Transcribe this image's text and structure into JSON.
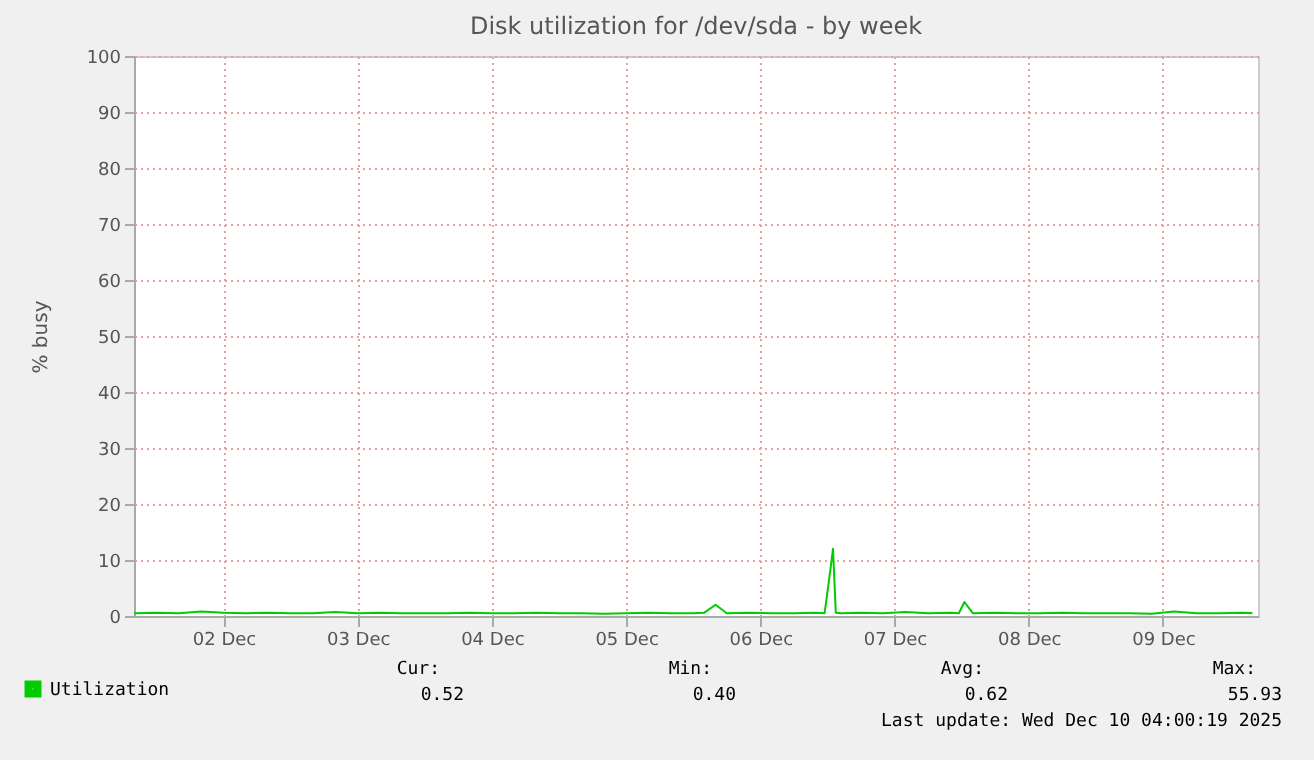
{
  "chart_data": {
    "type": "line",
    "title": "Disk utilization for /dev/sda - by week",
    "ylabel": "% busy",
    "x": [
      "2025-12-01T20:00",
      "2025-12-02T00:00",
      "2025-12-02T04:00",
      "2025-12-02T08:00",
      "2025-12-02T12:00",
      "2025-12-02T16:00",
      "2025-12-02T20:00",
      "2025-12-03T00:00",
      "2025-12-03T04:00",
      "2025-12-03T08:00",
      "2025-12-03T12:00",
      "2025-12-03T16:00",
      "2025-12-03T20:00",
      "2025-12-04T00:00",
      "2025-12-04T04:00",
      "2025-12-04T08:00",
      "2025-12-04T12:00",
      "2025-12-04T16:00",
      "2025-12-04T20:00",
      "2025-12-05T00:00",
      "2025-12-05T04:00",
      "2025-12-05T08:00",
      "2025-12-05T12:00",
      "2025-12-05T16:00",
      "2025-12-05T20:00",
      "2025-12-06T00:00",
      "2025-12-06T02:00",
      "2025-12-06T04:00",
      "2025-12-06T06:00",
      "2025-12-06T10:00",
      "2025-12-06T14:00",
      "2025-12-06T18:00",
      "2025-12-06T22:00",
      "2025-12-06T23:30",
      "2025-12-07T00:30",
      "2025-12-07T01:00",
      "2025-12-07T01:30",
      "2025-12-07T02:30",
      "2025-12-07T06:00",
      "2025-12-07T10:00",
      "2025-12-07T14:00",
      "2025-12-07T18:00",
      "2025-12-07T22:00",
      "2025-12-07T23:30",
      "2025-12-08T00:30",
      "2025-12-08T02:00",
      "2025-12-08T06:00",
      "2025-12-08T10:00",
      "2025-12-08T14:00",
      "2025-12-08T18:00",
      "2025-12-08T22:00",
      "2025-12-09T02:00",
      "2025-12-09T06:00",
      "2025-12-09T10:00",
      "2025-12-09T14:00",
      "2025-12-09T18:00",
      "2025-12-09T22:00",
      "2025-12-10T02:00",
      "2025-12-10T04:00"
    ],
    "series": [
      {
        "name": "Utilization",
        "color": "#00cc00",
        "values": [
          0.5,
          0.6,
          0.5,
          0.8,
          0.6,
          0.5,
          0.6,
          0.5,
          0.5,
          0.7,
          0.5,
          0.6,
          0.5,
          0.5,
          0.5,
          0.6,
          0.5,
          0.5,
          0.6,
          0.5,
          0.5,
          0.4,
          0.5,
          0.6,
          0.5,
          0.5,
          0.6,
          2,
          0.5,
          0.6,
          0.5,
          0.5,
          0.6,
          0.5,
          8,
          12,
          0.6,
          0.5,
          0.6,
          0.5,
          0.7,
          0.5,
          0.6,
          0.5,
          2.5,
          0.5,
          0.6,
          0.5,
          0.5,
          0.6,
          0.5,
          0.5,
          0.5,
          0.4,
          0.8,
          0.5,
          0.5,
          0.6,
          0.52
        ]
      }
    ],
    "xlim": [
      "2025-12-01T20:00",
      "2025-12-10T05:00"
    ],
    "xticks": [
      {
        "value": "2025-12-02T12:00",
        "label": "02 Dec"
      },
      {
        "value": "2025-12-03T12:00",
        "label": "03 Dec"
      },
      {
        "value": "2025-12-04T12:00",
        "label": "04 Dec"
      },
      {
        "value": "2025-12-05T12:00",
        "label": "05 Dec"
      },
      {
        "value": "2025-12-06T12:00",
        "label": "06 Dec"
      },
      {
        "value": "2025-12-07T12:00",
        "label": "07 Dec"
      },
      {
        "value": "2025-12-08T12:00",
        "label": "08 Dec"
      },
      {
        "value": "2025-12-09T12:00",
        "label": "09 Dec"
      }
    ],
    "ylim": [
      0,
      100
    ],
    "yticks": [
      0,
      10,
      20,
      30,
      40,
      50,
      60,
      70,
      80,
      90,
      100
    ],
    "grid": true,
    "legend": "bottom left",
    "marker": "none",
    "line_style": "solid",
    "annotations": [
      "Cur:",
      "0.52",
      "Min:",
      "0.40",
      "Avg:",
      "0.62",
      "Max:",
      "55.93",
      "Last update: Wed Dec 10 04:00:19 2025"
    ]
  }
}
